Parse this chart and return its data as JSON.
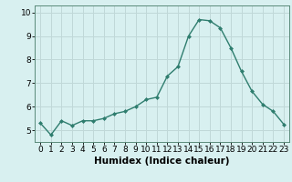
{
  "x": [
    0,
    1,
    2,
    3,
    4,
    5,
    6,
    7,
    8,
    9,
    10,
    11,
    12,
    13,
    14,
    15,
    16,
    17,
    18,
    19,
    20,
    21,
    22,
    23
  ],
  "y": [
    5.3,
    4.8,
    5.4,
    5.2,
    5.4,
    5.4,
    5.5,
    5.7,
    5.8,
    6.0,
    6.3,
    6.4,
    7.3,
    7.7,
    9.0,
    9.7,
    9.65,
    9.35,
    8.5,
    7.5,
    6.65,
    6.1,
    5.8,
    5.25
  ],
  "line_color": "#2e7d6e",
  "marker": "D",
  "marker_size": 2,
  "bg_color": "#d8f0f0",
  "grid_color": "#c0d8d8",
  "xlabel": "Humidex (Indice chaleur)",
  "ylim": [
    4.5,
    10.3
  ],
  "xlim": [
    -0.5,
    23.5
  ],
  "yticks": [
    5,
    6,
    7,
    8,
    9,
    10
  ],
  "xticks": [
    0,
    1,
    2,
    3,
    4,
    5,
    6,
    7,
    8,
    9,
    10,
    11,
    12,
    13,
    14,
    15,
    16,
    17,
    18,
    19,
    20,
    21,
    22,
    23
  ],
  "xlabel_fontsize": 7.5,
  "tick_fontsize": 6.5,
  "linewidth": 1.0,
  "spine_color": "#5a8a7a"
}
